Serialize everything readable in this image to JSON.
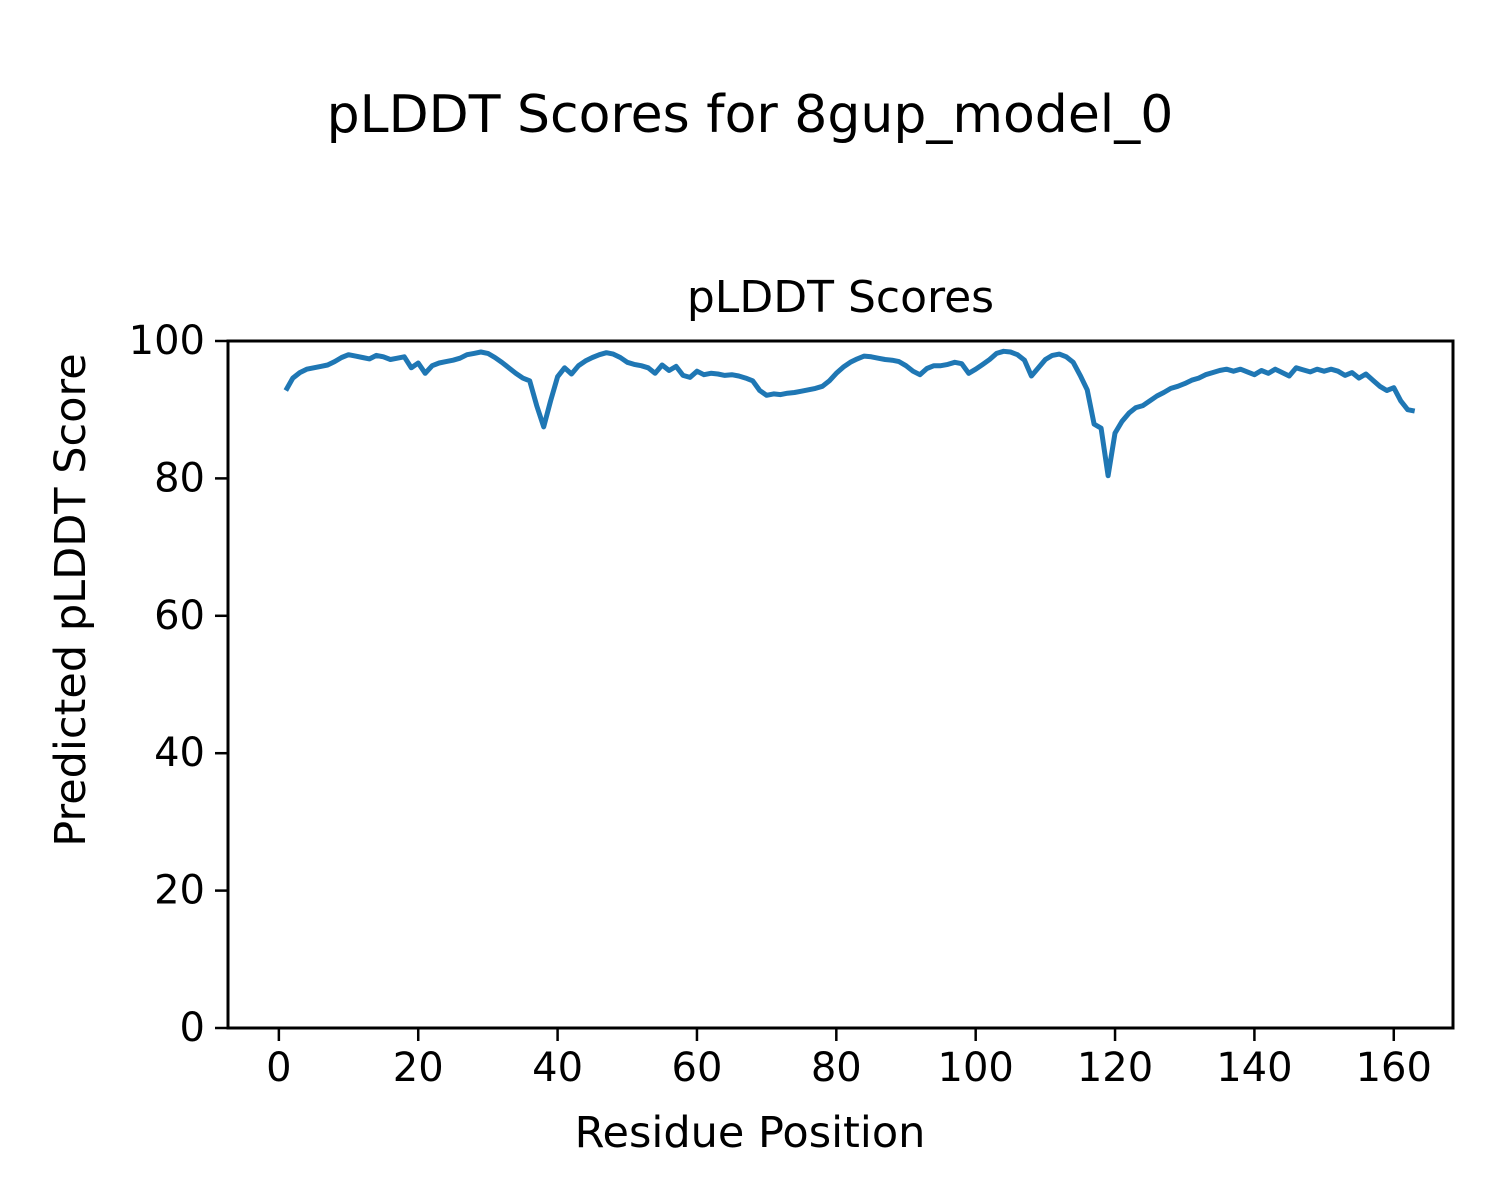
{
  "figure": {
    "suptitle": "pLDDT Scores for 8gup_model_0",
    "background_color": "#ffffff",
    "text_color": "#000000"
  },
  "chart_data": {
    "type": "line",
    "title": "pLDDT Scores",
    "xlabel": "Residue Position",
    "ylabel": "Predicted pLDDT Score",
    "xlim": [
      -7.3,
      168.5
    ],
    "ylim": [
      0,
      100
    ],
    "xticks": [
      0,
      20,
      40,
      60,
      80,
      100,
      120,
      140,
      160
    ],
    "yticks": [
      0,
      20,
      40,
      60,
      80,
      100
    ],
    "grid": false,
    "legend": null,
    "axis_color": "#000000",
    "series": [
      {
        "name": "pLDDT",
        "color": "#1f77b4",
        "x_start": 1,
        "x_step": 1,
        "values": [
          92.8,
          94.6,
          95.4,
          95.9,
          96.1,
          96.3,
          96.5,
          97.0,
          97.6,
          98.0,
          97.8,
          97.6,
          97.4,
          97.9,
          97.7,
          97.3,
          97.5,
          97.7,
          96.1,
          96.8,
          95.3,
          96.4,
          96.8,
          97.0,
          97.2,
          97.5,
          98.0,
          98.2,
          98.4,
          98.2,
          97.6,
          96.9,
          96.1,
          95.3,
          94.6,
          94.2,
          90.6,
          87.5,
          91.3,
          94.8,
          96.1,
          95.2,
          96.4,
          97.1,
          97.6,
          98.0,
          98.3,
          98.1,
          97.6,
          96.9,
          96.6,
          96.4,
          96.1,
          95.3,
          96.5,
          95.7,
          96.3,
          95.0,
          94.7,
          95.6,
          95.1,
          95.3,
          95.2,
          95.0,
          95.1,
          94.9,
          94.6,
          94.2,
          92.8,
          92.1,
          92.3,
          92.2,
          92.4,
          92.5,
          92.7,
          92.9,
          93.1,
          93.4,
          94.2,
          95.3,
          96.2,
          96.9,
          97.4,
          97.8,
          97.7,
          97.5,
          97.3,
          97.2,
          97.0,
          96.4,
          95.6,
          95.1,
          96.0,
          96.4,
          96.4,
          96.6,
          96.9,
          96.7,
          95.3,
          95.9,
          96.6,
          97.3,
          98.2,
          98.5,
          98.4,
          98.0,
          97.2,
          94.9,
          96.1,
          97.3,
          97.9,
          98.1,
          97.7,
          96.9,
          95.0,
          92.9,
          87.9,
          87.3,
          80.4,
          86.6,
          88.3,
          89.5,
          90.3,
          90.6,
          91.3,
          92.0,
          92.5,
          93.1,
          93.4,
          93.8,
          94.3,
          94.6,
          95.1,
          95.4,
          95.7,
          95.9,
          95.6,
          95.9,
          95.5,
          95.1,
          95.7,
          95.3,
          95.9,
          95.4,
          94.9,
          96.1,
          95.8,
          95.5,
          95.9,
          95.6,
          95.9,
          95.6,
          95.0,
          95.4,
          94.6,
          95.2,
          94.3,
          93.4,
          92.8,
          93.2,
          91.3,
          90.0,
          89.8
        ]
      }
    ]
  }
}
